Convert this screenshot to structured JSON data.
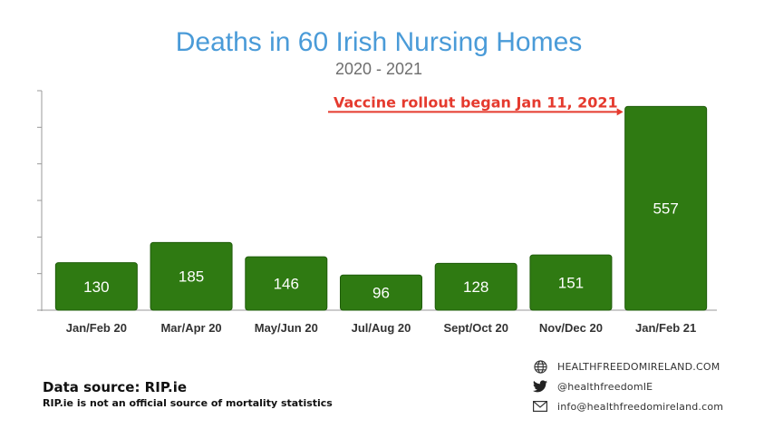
{
  "chart_data": {
    "type": "bar",
    "title": "Deaths in 60 Irish Nursing Homes",
    "subtitle": "2020 - 2021",
    "categories": [
      "Jan/Feb 20",
      "Mar/Apr 20",
      "May/Jun 20",
      "Jul/Aug 20",
      "Sept/Oct 20",
      "Nov/Dec 20",
      "Jan/Feb 21"
    ],
    "values": [
      130,
      185,
      146,
      96,
      128,
      151,
      557
    ],
    "ylim": [
      0,
      600
    ],
    "grid": false,
    "bar_color": "#2f7a12",
    "annotation": {
      "text": "Vaccine rollout began Jan 11, 2021",
      "color": "#e53a2e",
      "target_category": "Jan/Feb 21"
    }
  },
  "source": {
    "title": "Data source: RIP.ie",
    "note": "RIP.ie is not an official source of mortality statistics"
  },
  "contacts": [
    {
      "icon": "globe-icon",
      "text": "HEALTHFREEDOMIRELAND.COM"
    },
    {
      "icon": "twitter-icon",
      "text": "@healthfreedomIE"
    },
    {
      "icon": "envelope-icon",
      "text": "info@healthfreedomireland.com"
    }
  ]
}
